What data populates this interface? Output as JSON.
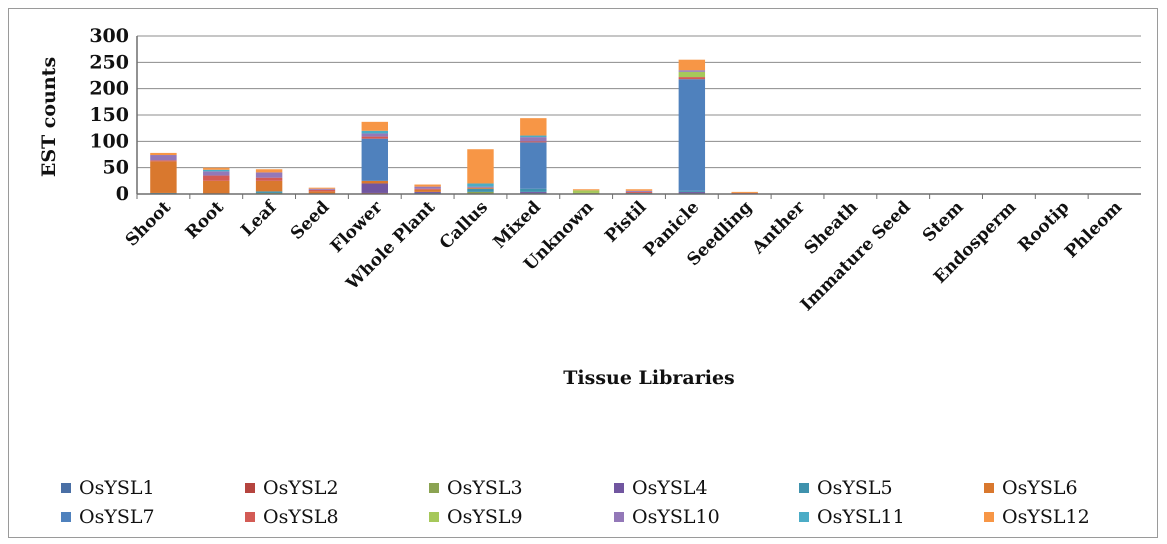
{
  "chart_data": {
    "type": "bar",
    "stacked": true,
    "title": "",
    "xlabel": "Tissue Libraries",
    "ylabel": "EST counts",
    "ylim": [
      0,
      300
    ],
    "yticks": [
      0,
      50,
      100,
      150,
      200,
      250,
      300
    ],
    "grid": true,
    "legend_position": "bottom",
    "categories": [
      "Shoot",
      "Root",
      "Leaf",
      "Seed",
      "Flower",
      "Whole Plant",
      "Callus",
      "Mixed",
      "Unknown",
      "Pistil",
      "Panicle",
      "Seedling",
      "Anther",
      "Sheath",
      "Immature Seed",
      "Stem",
      "Endosperm",
      "Rootip",
      "Phleom"
    ],
    "series": [
      {
        "name": "OsYSL1",
        "color": "#4a6fa5",
        "values": [
          0,
          0,
          0,
          0,
          0,
          2,
          0,
          2,
          0,
          0,
          2,
          0,
          0,
          0,
          0,
          0,
          0,
          0,
          0
        ]
      },
      {
        "name": "OsYSL2",
        "color": "#b5443f",
        "values": [
          0,
          0,
          0,
          0,
          2,
          0,
          0,
          0,
          0,
          0,
          0,
          0,
          0,
          0,
          0,
          0,
          0,
          0,
          0
        ]
      },
      {
        "name": "OsYSL3",
        "color": "#8ba352",
        "values": [
          0,
          0,
          2,
          0,
          0,
          0,
          4,
          0,
          2,
          0,
          0,
          0,
          0,
          0,
          0,
          0,
          0,
          0,
          0
        ]
      },
      {
        "name": "OsYSL4",
        "color": "#7156a0",
        "values": [
          0,
          0,
          0,
          0,
          18,
          2,
          0,
          2,
          0,
          0,
          2,
          0,
          0,
          0,
          0,
          0,
          0,
          0,
          0
        ]
      },
      {
        "name": "OsYSL5",
        "color": "#3f92ad",
        "values": [
          2,
          0,
          3,
          0,
          0,
          0,
          6,
          6,
          0,
          2,
          2,
          0,
          0,
          0,
          0,
          0,
          0,
          0,
          0
        ]
      },
      {
        "name": "OsYSL6",
        "color": "#d9782e",
        "values": [
          60,
          25,
          20,
          5,
          5,
          4,
          2,
          0,
          0,
          0,
          0,
          0,
          0,
          0,
          0,
          0,
          0,
          0,
          0
        ]
      },
      {
        "name": "OsYSL7",
        "color": "#4f81bd",
        "values": [
          0,
          0,
          0,
          0,
          80,
          0,
          0,
          88,
          0,
          0,
          212,
          0,
          0,
          0,
          0,
          0,
          0,
          0,
          0
        ]
      },
      {
        "name": "OsYSL8",
        "color": "#d35b55",
        "values": [
          2,
          10,
          6,
          3,
          4,
          2,
          0,
          2,
          0,
          2,
          4,
          2,
          0,
          0,
          0,
          0,
          0,
          0,
          0
        ]
      },
      {
        "name": "OsYSL9",
        "color": "#a6c85a",
        "values": [
          0,
          0,
          0,
          0,
          0,
          0,
          0,
          0,
          5,
          0,
          10,
          0,
          0,
          0,
          0,
          0,
          0,
          0,
          0
        ]
      },
      {
        "name": "OsYSL10",
        "color": "#9378b8",
        "values": [
          10,
          8,
          10,
          2,
          6,
          4,
          2,
          8,
          0,
          2,
          3,
          0,
          0,
          0,
          0,
          0,
          0,
          0,
          0
        ]
      },
      {
        "name": "OsYSL11",
        "color": "#4bacc6",
        "values": [
          0,
          3,
          0,
          0,
          5,
          0,
          6,
          3,
          0,
          0,
          0,
          0,
          0,
          0,
          0,
          0,
          0,
          0,
          0
        ]
      },
      {
        "name": "OsYSL12",
        "color": "#f79646",
        "values": [
          4,
          4,
          6,
          2,
          17,
          4,
          65,
          33,
          2,
          3,
          20,
          2,
          0,
          0,
          0,
          0,
          0,
          0,
          0
        ]
      }
    ]
  }
}
